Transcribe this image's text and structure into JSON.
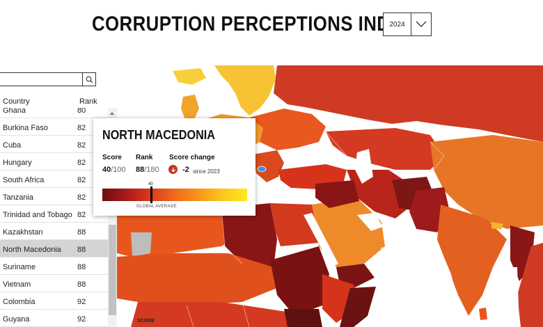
{
  "header": {
    "title": "CORRUPTION PERCEPTIONS INDEX",
    "year_value": "2024"
  },
  "search": {
    "placeholder": ""
  },
  "table": {
    "col_country": "Country",
    "col_rank": "Rank",
    "rows": [
      {
        "country": "Ghana",
        "rank": "80"
      },
      {
        "country": "Burkina Faso",
        "rank": "82"
      },
      {
        "country": "Cuba",
        "rank": "82"
      },
      {
        "country": "Hungary",
        "rank": "82"
      },
      {
        "country": "South Africa",
        "rank": "82"
      },
      {
        "country": "Tanzania",
        "rank": "82"
      },
      {
        "country": "Trinidad and Tobago",
        "rank": "82"
      },
      {
        "country": "Kazakhstan",
        "rank": "88"
      },
      {
        "country": "North Macedonia",
        "rank": "88"
      },
      {
        "country": "Suriname",
        "rank": "88"
      },
      {
        "country": "Vietnam",
        "rank": "88"
      },
      {
        "country": "Colombia",
        "rank": "92"
      },
      {
        "country": "Guyana",
        "rank": "92"
      }
    ],
    "selected": "North Macedonia"
  },
  "tooltip": {
    "country": "NORTH MACEDONIA",
    "score_label": "Score",
    "score_value": "40",
    "score_total": "/100",
    "rank_label": "Rank",
    "rank_value": "88",
    "rank_total": "/180",
    "change_label": "Score change",
    "change_value": "-2",
    "change_since": "since 2023",
    "scale_marker_value": "40",
    "scale_caption": "GLOBAL AVERAGE",
    "scale_marker_fraction": 0.4
  },
  "map": {
    "score_tag": "SCORE"
  },
  "colors": {
    "very_low": "#6b1212",
    "low": "#a81c1c",
    "mid_low": "#d23a1d",
    "mid": "#e9561d",
    "mid_high": "#ef7a22",
    "high": "#f5a524",
    "very_high": "#f8cf3a",
    "selected_country": "#4a90d9",
    "no_data": "#bdbdbd"
  },
  "icons": {
    "search": "search-icon",
    "chevron": "chevron-down-icon",
    "change": "arrow-down-icon"
  }
}
